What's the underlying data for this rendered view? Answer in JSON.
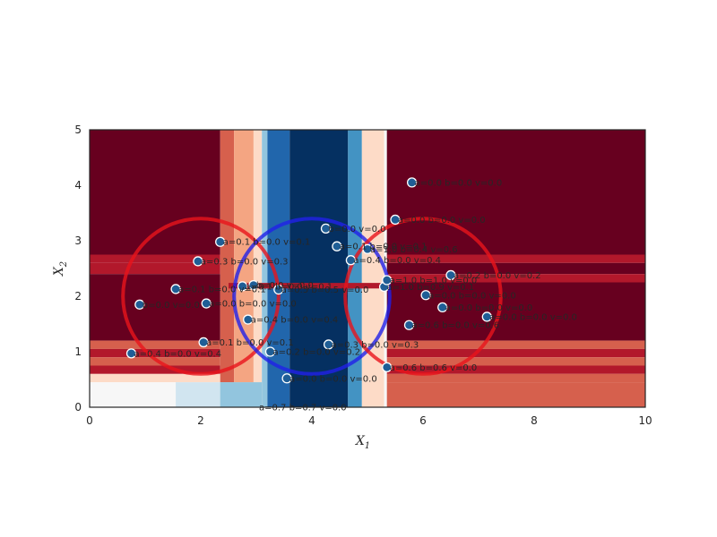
{
  "chart_data": {
    "type": "scatter",
    "title": "",
    "xlabel": "X",
    "xlabel_sub": "1",
    "ylabel": "X",
    "ylabel_sub": "2",
    "xlim": [
      0,
      10
    ],
    "ylim": [
      0,
      5
    ],
    "xticks": [
      "0",
      "2",
      "4",
      "6",
      "8",
      "10"
    ],
    "yticks": [
      "0",
      "1",
      "2",
      "3",
      "4",
      "5"
    ],
    "grid": false,
    "background": "decision-region heatmap (red = class 1, blue = class 0)",
    "colors": {
      "dark_red": "#67001f",
      "red": "#b2182b",
      "mid_red": "#d6604d",
      "light_red": "#f4a582",
      "pale_red": "#fddbc7",
      "white": "#f7f7f7",
      "pale_blue": "#d1e5f0",
      "light_blue": "#92c5de",
      "mid_blue": "#4393c3",
      "blue": "#2166ac",
      "dark_blue": "#053061",
      "red_circle": "#e8141b",
      "blue_circle": "#2121e8"
    },
    "circles": [
      {
        "cx": 2,
        "cy": 2,
        "r": 1.4,
        "color": "red"
      },
      {
        "cx": 4,
        "cy": 2,
        "r": 1.4,
        "color": "blue"
      },
      {
        "cx": 6,
        "cy": 2,
        "r": 1.4,
        "color": "red"
      }
    ],
    "points": [
      {
        "x": 0.75,
        "y": 0.97,
        "label": "a=0.4 b=0.0 v=0.4"
      },
      {
        "x": 0.9,
        "y": 1.85,
        "label": "b=0.0 v=0.0"
      },
      {
        "x": 1.55,
        "y": 2.13,
        "label": "a=0.1 b=0.0 v=0.1"
      },
      {
        "x": 1.95,
        "y": 2.63,
        "label": "a=0.3 b=0.0 v=0.3"
      },
      {
        "x": 2.05,
        "y": 1.17,
        "label": "a=0.1 b=0.0 v=0.1"
      },
      {
        "x": 2.1,
        "y": 1.87,
        "label": "a=0.0 b=0.0 v=0.0"
      },
      {
        "x": 2.35,
        "y": 2.98,
        "label": "a=0.1 b=0.0 v=0.1"
      },
      {
        "x": 2.75,
        "y": 2.18,
        "label": "a=0.1 b=0.0 v=0.1"
      },
      {
        "x": 2.85,
        "y": 1.58,
        "label": "a=0.4 b=0.0 v=0.4"
      },
      {
        "x": 2.95,
        "y": 2.2,
        "label": "b=0.0 v=0.0"
      },
      {
        "x": 3.25,
        "y": 1.0,
        "label": "a=0.2 b=0.0 v=0.2"
      },
      {
        "x": 3.55,
        "y": 0.52,
        "label": "a=0.0 b=0.0 v=0.0"
      },
      {
        "x": 3.4,
        "y": 2.12,
        "label": "a=0.5 b=0.5 v=0.0"
      },
      {
        "x": 4.25,
        "y": 3.22,
        "label": "b=0.0 v=0.0"
      },
      {
        "x": 4.3,
        "y": 1.13,
        "label": "a=0.3 b=0.0 v=0.3"
      },
      {
        "x": 4.45,
        "y": 2.9,
        "label": "a=0.1 b=0.0 v=0.1"
      },
      {
        "x": 4.7,
        "y": 2.65,
        "label": "a=0.4 b=0.0 v=0.4"
      },
      {
        "x": 5.0,
        "y": 2.85,
        "label": "a=1.0 b=0.4 v=0.6"
      },
      {
        "x": 5.3,
        "y": 2.17,
        "label": "a=1.0 b=0.9 v=0.1"
      },
      {
        "x": 5.35,
        "y": 2.29,
        "label": "a=1.0 b=1.0 v=0.0"
      },
      {
        "x": 5.35,
        "y": 0.72,
        "label": "a=0.6 b=0.6 v=0.0"
      },
      {
        "x": 5.5,
        "y": 3.38,
        "label": "a=0.0 b=0.0 v=0.0"
      },
      {
        "x": 5.75,
        "y": 1.48,
        "label": "a=0.6 b=0.0 v=0.6"
      },
      {
        "x": 5.8,
        "y": 4.05,
        "label": "a=0.0 b=0.0 v=0.0"
      },
      {
        "x": 6.05,
        "y": 2.02,
        "label": "a=0.0 b=0.0 v=0.0"
      },
      {
        "x": 6.35,
        "y": 1.8,
        "label": "a=0.0 b=0.0 v=0.0"
      },
      {
        "x": 6.5,
        "y": 2.38,
        "label": "a=0.2 b=0.0 v=0.2"
      },
      {
        "x": 7.15,
        "y": 1.63,
        "label": "a=0.0 b=0.0 v=0.0"
      },
      {
        "x": 3.0,
        "y": 0.0,
        "label": "a=0.7 b=0.7 v=0.0"
      }
    ]
  }
}
